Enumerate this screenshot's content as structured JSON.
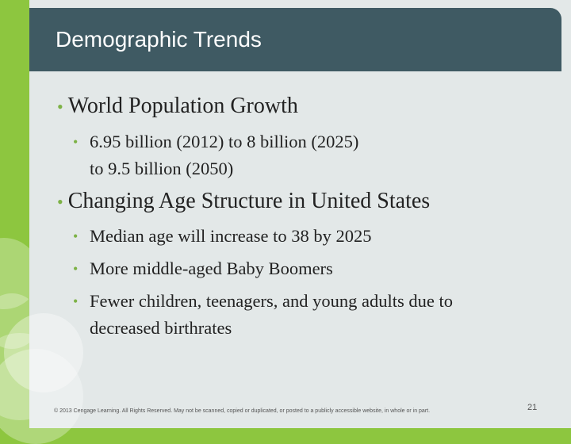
{
  "slide": {
    "title": "Demographic Trends",
    "bullets": [
      {
        "text": "World Population Growth",
        "sub": [
          {
            "line1": "6.95 billion (2012) to 8 billion (2025)",
            "line2": "to 9.5 billion (2050)"
          }
        ]
      },
      {
        "text": "Changing Age Structure in United States",
        "sub": [
          {
            "line1": "Median age will increase to 38 by 2025"
          },
          {
            "line1": "More middle-aged Baby Boomers"
          },
          {
            "line1": "Fewer children, teenagers, and young adults due to",
            "line2": "decreased birthrates"
          }
        ]
      }
    ],
    "bullet_glyph": "•",
    "footer": "© 2013 Cengage Learning. All Rights Reserved. May not be scanned, copied or duplicated, or posted to a publicly accessible website, in whole or in part.",
    "page_number": "21"
  },
  "colors": {
    "accent_green": "#8dc63f",
    "title_bar": "#3f5a63",
    "background": "#e3e8e8"
  }
}
